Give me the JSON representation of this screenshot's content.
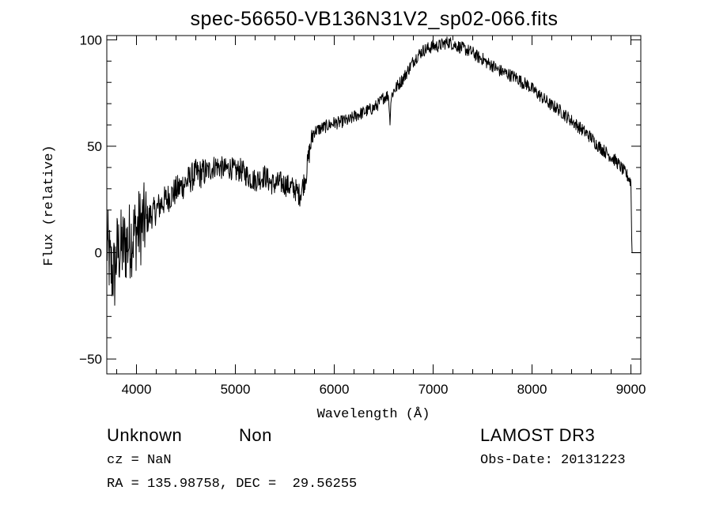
{
  "chart_data": {
    "type": "line",
    "title": "spec-56650-VB136N31V2_sp02-066.fits",
    "xlabel": "Wavelength (Å)",
    "ylabel": "Flux (relative)",
    "xlim": [
      3700,
      9100
    ],
    "ylim": [
      -57,
      102
    ],
    "x_ticks": [
      4000,
      5000,
      6000,
      7000,
      8000,
      9000
    ],
    "y_ticks": [
      -50,
      0,
      50,
      100
    ],
    "grid": false,
    "series": [
      {
        "x": [
          3700,
          3740,
          3780,
          3800,
          3840,
          3880,
          3920,
          3960,
          4000,
          4050,
          4100,
          4150,
          4200,
          4250,
          4300,
          4350,
          4400,
          4450,
          4500,
          4550,
          4600,
          4650,
          4700,
          4750,
          4800,
          4850,
          4900,
          4950,
          5000,
          5050,
          5100,
          5150,
          5200,
          5250,
          5300,
          5350,
          5400,
          5450,
          5500,
          5550,
          5600,
          5650,
          5700,
          5720,
          5740,
          5760,
          5780,
          5800,
          5850,
          5900,
          5950,
          6000,
          6050,
          6100,
          6150,
          6200,
          6250,
          6300,
          6350,
          6400,
          6450,
          6500,
          6550,
          6562,
          6575,
          6600,
          6650,
          6700,
          6750,
          6800,
          6850,
          6900,
          6950,
          7000,
          7050,
          7100,
          7150,
          7200,
          7250,
          7300,
          7350,
          7400,
          7450,
          7500,
          7550,
          7600,
          7650,
          7700,
          7750,
          7800,
          7850,
          7900,
          7950,
          8000,
          8050,
          8100,
          8150,
          8200,
          8250,
          8300,
          8350,
          8400,
          8450,
          8500,
          8550,
          8600,
          8650,
          8700,
          8750,
          8800,
          8850,
          8900,
          8950,
          8980,
          9000,
          9010,
          9100
        ],
        "y": [
          5,
          -8,
          -10,
          0,
          2,
          3,
          5,
          8,
          10,
          13,
          15,
          18,
          20,
          23,
          25,
          27,
          29,
          31,
          33,
          35,
          37,
          37,
          38,
          39,
          41,
          40,
          39,
          40,
          38,
          39,
          37,
          35,
          34,
          35,
          36,
          33,
          32,
          33,
          32,
          31,
          30,
          27,
          34,
          38,
          45,
          50,
          55,
          57,
          58,
          59,
          60,
          61,
          61,
          62,
          62,
          64,
          65,
          66,
          67,
          68,
          70,
          73,
          74,
          61,
          73,
          76,
          79,
          82,
          86,
          90,
          93,
          95,
          96,
          97,
          97,
          98,
          99,
          98,
          97,
          96,
          95,
          94,
          92,
          91,
          89,
          88,
          86,
          85,
          84,
          83,
          82,
          80,
          79,
          77,
          75,
          73,
          71,
          69,
          68,
          66,
          64,
          62,
          60,
          58,
          56,
          54,
          51,
          49,
          47,
          45,
          43,
          40,
          37,
          35,
          33,
          0,
          0
        ]
      }
    ]
  },
  "info": {
    "object_name": "Unknown",
    "object_class": "Non",
    "survey": "LAMOST DR3",
    "redshift": "cz = NaN",
    "obs_date": "Obs-Date: 20131223",
    "coords": "RA = 135.98758, DEC =  29.56255"
  }
}
